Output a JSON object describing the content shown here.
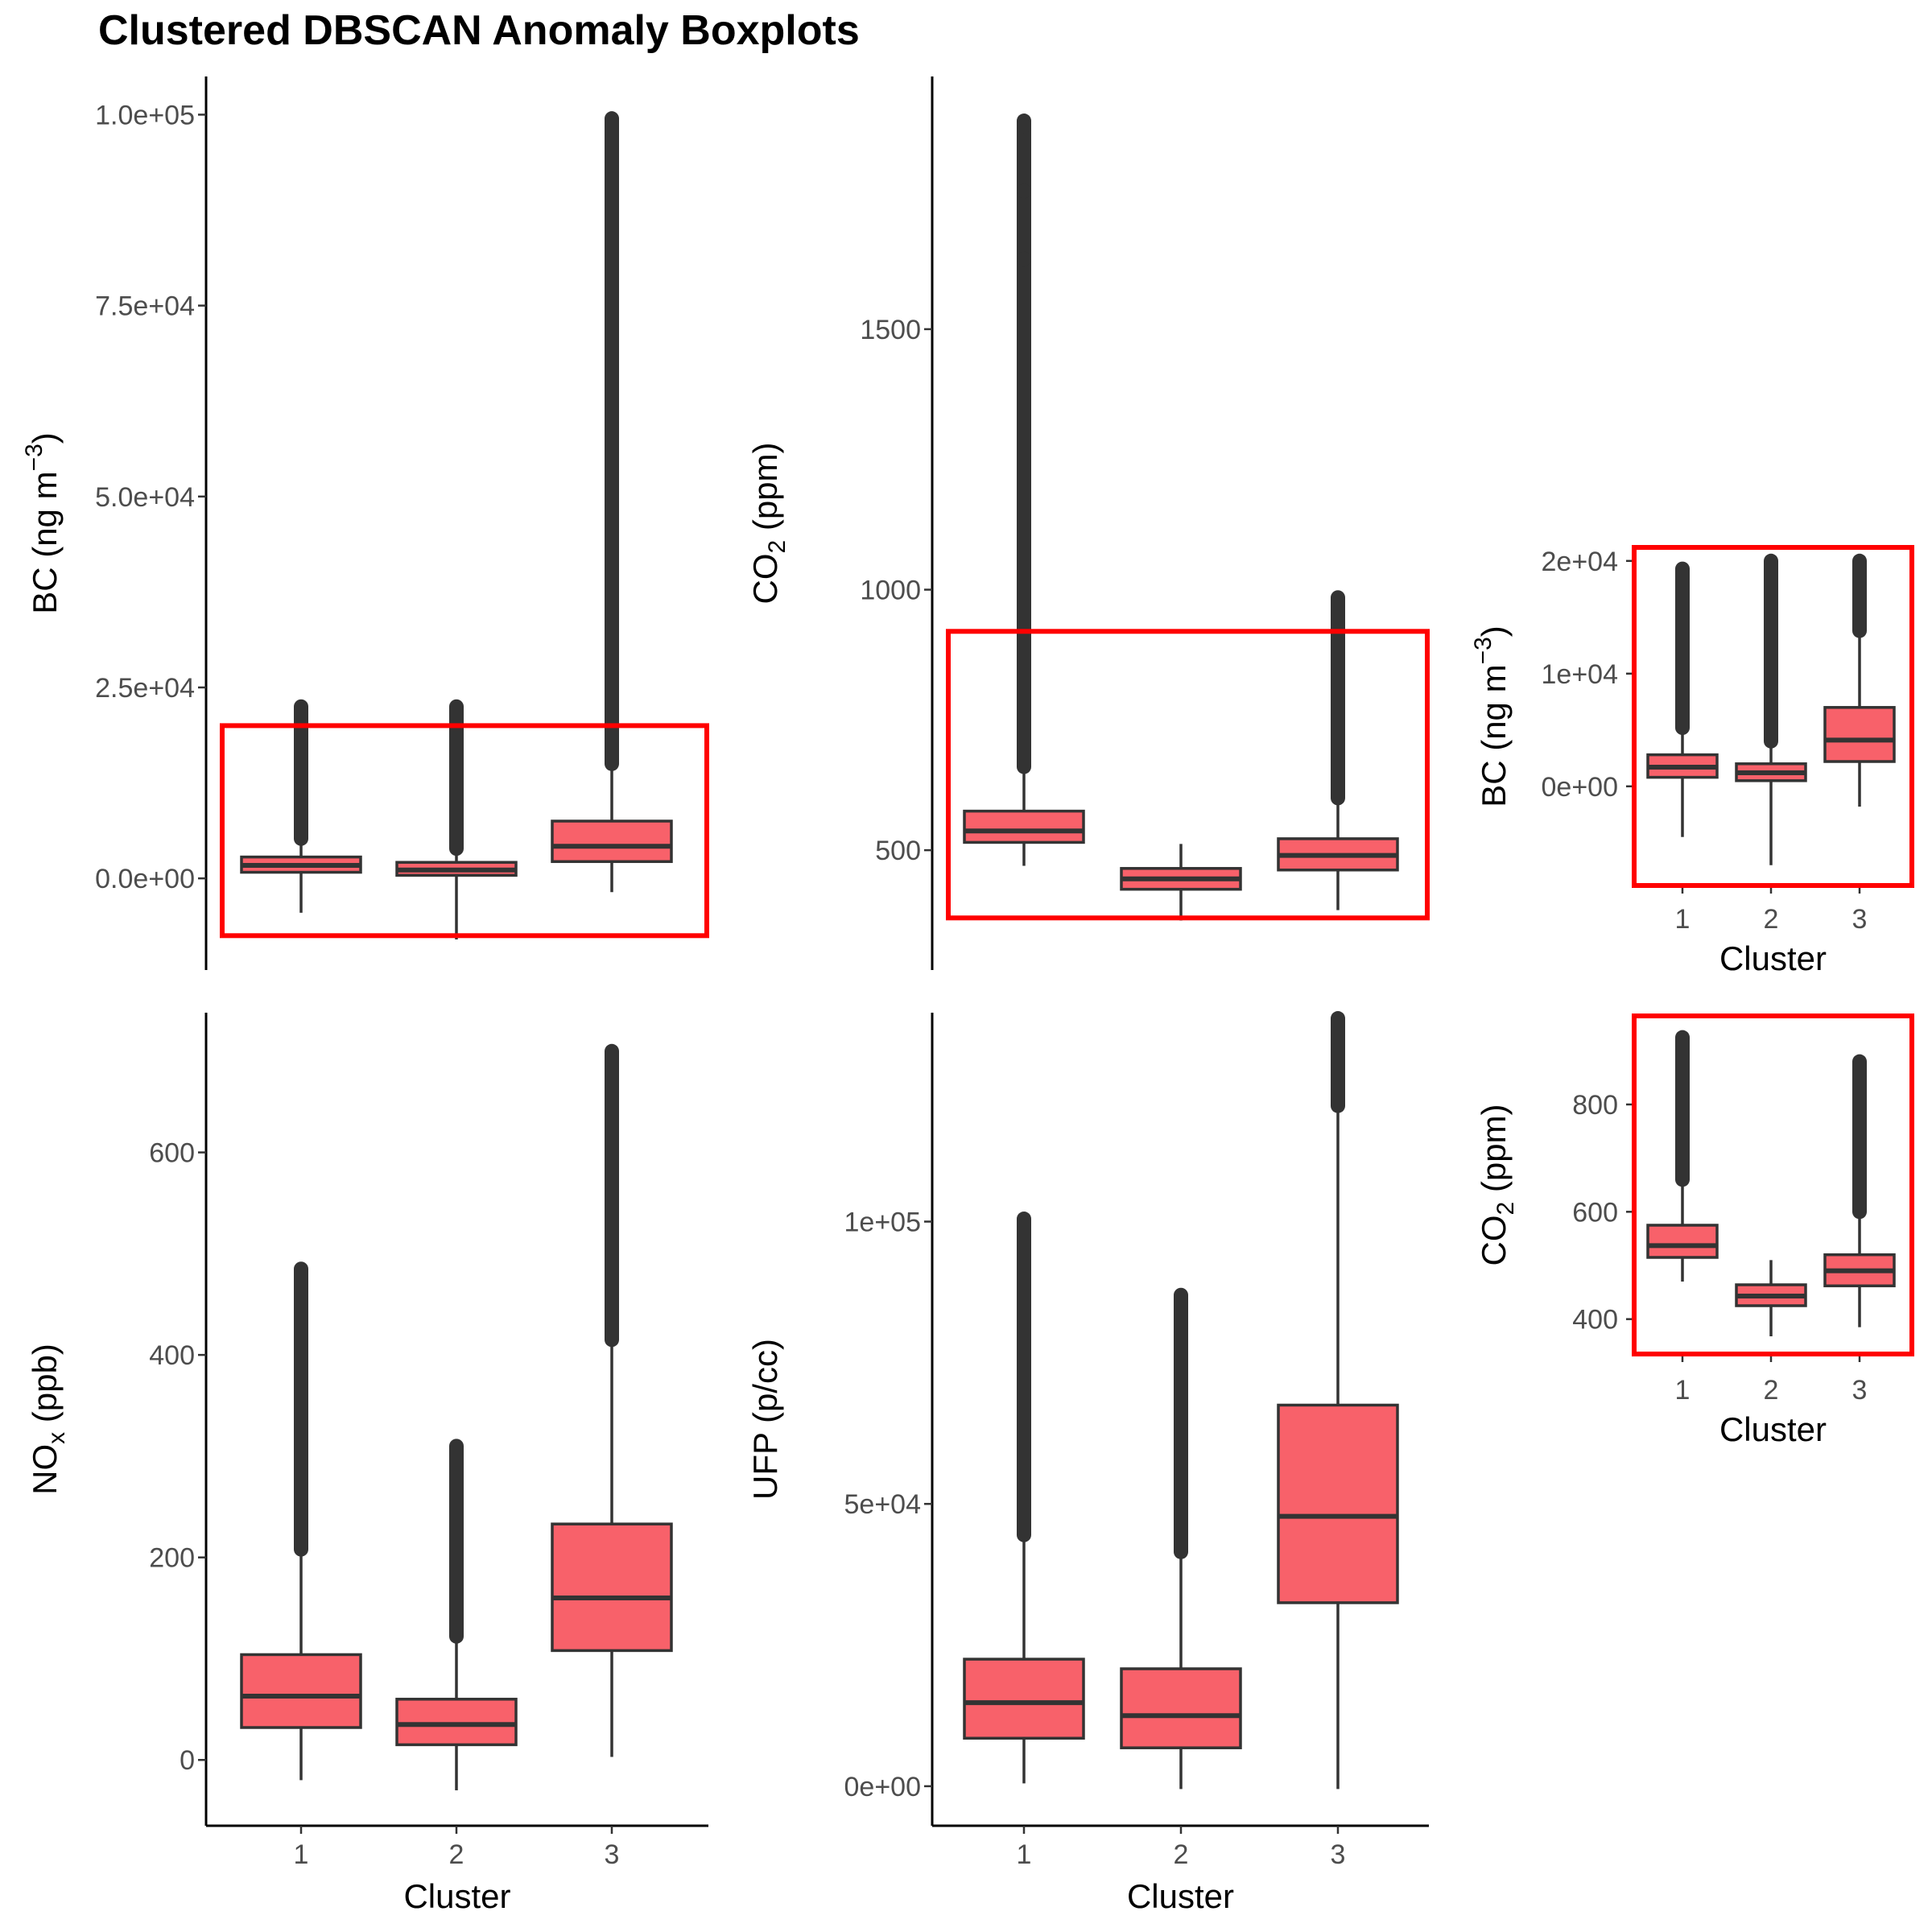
{
  "title": "Clustered DBSCAN Anomaly Boxplots",
  "colors": {
    "box_fill": "#F8616A",
    "box_line": "#333333",
    "highlight": "#FF0000"
  },
  "chart_data": [
    {
      "id": "bc",
      "type": "boxplot",
      "ylabel": {
        "main": "BC (ng m",
        "sup": "−3",
        "tail": ")"
      },
      "xlabel": "",
      "categories": [
        "1",
        "2",
        "3"
      ],
      "ylim": [
        -12000,
        105000
      ],
      "yticks": [
        {
          "v": 0,
          "l": "0.0e+00"
        },
        {
          "v": 25000,
          "l": "2.5e+04"
        },
        {
          "v": 50000,
          "l": "5.0e+04"
        },
        {
          "v": 75000,
          "l": "7.5e+04"
        },
        {
          "v": 100000,
          "l": "1.0e+05"
        }
      ],
      "show_xaxis": false,
      "boxes": [
        {
          "cat": "1",
          "lower_whisker": -4500,
          "q1": 800,
          "median": 1700,
          "q3": 2800,
          "upper_whisker": 5200,
          "outlier_min": 5200,
          "outlier_max": 22500
        },
        {
          "cat": "2",
          "lower_whisker": -8000,
          "q1": 400,
          "median": 1100,
          "q3": 2100,
          "upper_whisker": 3900,
          "outlier_min": 3900,
          "outlier_max": 22500
        },
        {
          "cat": "3",
          "lower_whisker": -1800,
          "q1": 2200,
          "median": 4200,
          "q3": 7500,
          "upper_whisker": 15000,
          "outlier_min": 15000,
          "outlier_max": 99500
        }
      ],
      "highlight": {
        "y_from": -7500,
        "y_to": 20000
      }
    },
    {
      "id": "co2",
      "type": "boxplot",
      "ylabel": {
        "main": "CO",
        "sub": "2",
        "tail": " (ppm)"
      },
      "xlabel": "",
      "categories": [
        "1",
        "2",
        "3"
      ],
      "ylim": [
        270,
        1985
      ],
      "yticks": [
        {
          "v": 500,
          "l": "500"
        },
        {
          "v": 1000,
          "l": "1000"
        },
        {
          "v": 1500,
          "l": "1500"
        }
      ],
      "show_xaxis": false,
      "boxes": [
        {
          "cat": "1",
          "lower_whisker": 470,
          "q1": 515,
          "median": 537,
          "q3": 575,
          "upper_whisker": 660,
          "outlier_min": 660,
          "outlier_max": 1900
        },
        {
          "cat": "2",
          "lower_whisker": 365,
          "q1": 425,
          "median": 445,
          "q3": 465,
          "upper_whisker": 512,
          "outlier_min": null,
          "outlier_max": null
        },
        {
          "cat": "3",
          "lower_whisker": 385,
          "q1": 462,
          "median": 490,
          "q3": 522,
          "upper_whisker": 600,
          "outlier_min": 600,
          "outlier_max": 985
        }
      ],
      "highlight": {
        "y_from": 370,
        "y_to": 920
      }
    },
    {
      "id": "nox",
      "type": "boxplot",
      "ylabel": {
        "main": "NO",
        "sub": "x",
        "tail": " (ppb)"
      },
      "xlabel": "Cluster",
      "categories": [
        "1",
        "2",
        "3"
      ],
      "ylim": [
        -65,
        738
      ],
      "yticks": [
        {
          "v": 0,
          "l": "0"
        },
        {
          "v": 200,
          "l": "200"
        },
        {
          "v": 400,
          "l": "400"
        },
        {
          "v": 600,
          "l": "600"
        }
      ],
      "show_xaxis": true,
      "boxes": [
        {
          "cat": "1",
          "lower_whisker": -20,
          "q1": 32,
          "median": 63,
          "q3": 104,
          "upper_whisker": 208,
          "outlier_min": 208,
          "outlier_max": 485
        },
        {
          "cat": "2",
          "lower_whisker": -30,
          "q1": 15,
          "median": 35,
          "q3": 60,
          "upper_whisker": 122,
          "outlier_min": 122,
          "outlier_max": 310
        },
        {
          "cat": "3",
          "lower_whisker": 3,
          "q1": 108,
          "median": 160,
          "q3": 233,
          "upper_whisker": 415,
          "outlier_min": 415,
          "outlier_max": 700
        }
      ],
      "highlight": null
    },
    {
      "id": "ufp",
      "type": "boxplot",
      "ylabel": {
        "main": "UFP (p/cc)"
      },
      "xlabel": "Cluster",
      "categories": [
        "1",
        "2",
        "3"
      ],
      "ylim": [
        -7000,
        137000
      ],
      "yticks": [
        {
          "v": 0,
          "l": "0e+00"
        },
        {
          "v": 50000,
          "l": "5e+04"
        },
        {
          "v": 100000,
          "l": "1e+05"
        }
      ],
      "show_xaxis": true,
      "boxes": [
        {
          "cat": "1",
          "lower_whisker": 500,
          "q1": 8500,
          "median": 14800,
          "q3": 22500,
          "upper_whisker": 44500,
          "outlier_min": 44500,
          "outlier_max": 100500
        },
        {
          "cat": "2",
          "lower_whisker": -500,
          "q1": 6800,
          "median": 12500,
          "q3": 20800,
          "upper_whisker": 41500,
          "outlier_min": 41500,
          "outlier_max": 87000
        },
        {
          "cat": "3",
          "lower_whisker": -500,
          "q1": 32500,
          "median": 47800,
          "q3": 67500,
          "upper_whisker": 120500,
          "outlier_min": 120500,
          "outlier_max": 136000
        }
      ],
      "highlight": null
    },
    {
      "id": "bc_zoom",
      "type": "boxplot",
      "ylabel": {
        "main": "BC (ng m",
        "sup": "−3",
        "tail": ")"
      },
      "xlabel": "Cluster",
      "categories": [
        "1",
        "2",
        "3"
      ],
      "ylim": [
        -8800,
        21200
      ],
      "yticks": [
        {
          "v": 0,
          "l": "0e+00"
        },
        {
          "v": 10000,
          "l": "1e+04"
        },
        {
          "v": 20000,
          "l": "2e+04"
        }
      ],
      "show_xaxis": true,
      "boxes": [
        {
          "cat": "1",
          "lower_whisker": -4500,
          "q1": 800,
          "median": 1700,
          "q3": 2800,
          "upper_whisker": 5200,
          "outlier_min": 5200,
          "outlier_max": 19300
        },
        {
          "cat": "2",
          "lower_whisker": -7000,
          "q1": 500,
          "median": 1200,
          "q3": 2000,
          "upper_whisker": 4000,
          "outlier_min": 4000,
          "outlier_max": 20000
        },
        {
          "cat": "3",
          "lower_whisker": -1800,
          "q1": 2200,
          "median": 4100,
          "q3": 7000,
          "upper_whisker": 13800,
          "outlier_min": 13800,
          "outlier_max": 20000
        }
      ],
      "highlight": "frame"
    },
    {
      "id": "co2_zoom",
      "type": "boxplot",
      "ylabel": {
        "main": "CO",
        "sub": "2",
        "tail": " (ppm)"
      },
      "xlabel": "Cluster",
      "categories": [
        "1",
        "2",
        "3"
      ],
      "ylim": [
        335,
        965
      ],
      "yticks": [
        {
          "v": 400,
          "l": "400"
        },
        {
          "v": 600,
          "l": "600"
        },
        {
          "v": 800,
          "l": "800"
        }
      ],
      "show_xaxis": true,
      "boxes": [
        {
          "cat": "1",
          "lower_whisker": 470,
          "q1": 515,
          "median": 537,
          "q3": 575,
          "upper_whisker": 660,
          "outlier_min": 660,
          "outlier_max": 925
        },
        {
          "cat": "2",
          "lower_whisker": 368,
          "q1": 425,
          "median": 443,
          "q3": 464,
          "upper_whisker": 510,
          "outlier_min": null,
          "outlier_max": null
        },
        {
          "cat": "3",
          "lower_whisker": 385,
          "q1": 462,
          "median": 490,
          "q3": 520,
          "upper_whisker": 600,
          "outlier_min": 600,
          "outlier_max": 880
        }
      ],
      "highlight": "frame"
    }
  ]
}
